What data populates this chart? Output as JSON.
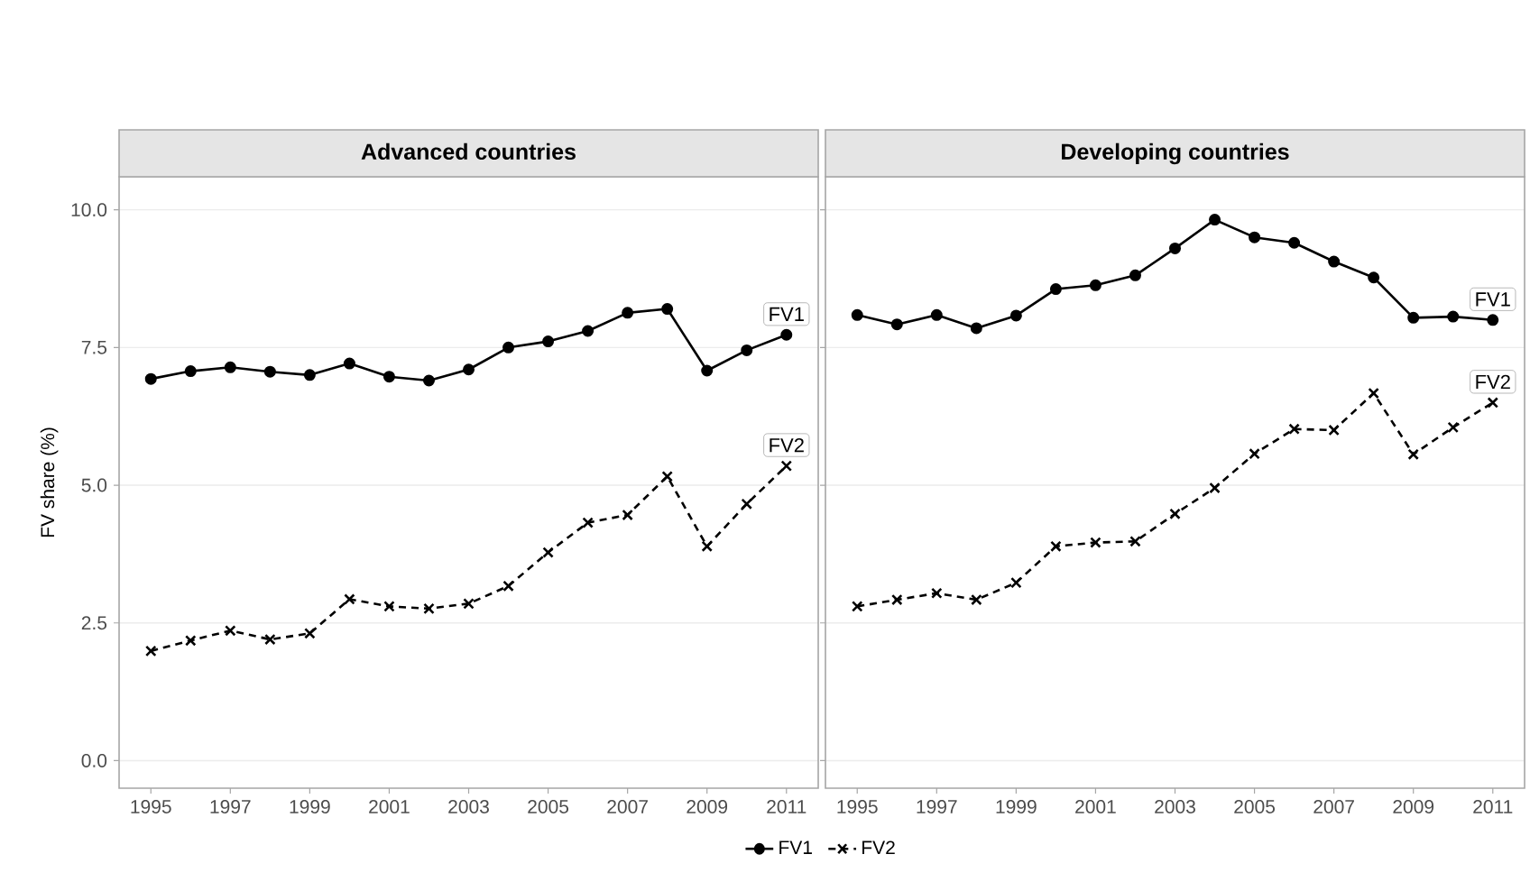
{
  "chart_data": [
    {
      "type": "line",
      "title": "Advanced countries",
      "ylabel": "FV share (%)",
      "grid": "y",
      "legend": "bottom",
      "x": [
        1995,
        1996,
        1997,
        1998,
        1999,
        2000,
        2001,
        2002,
        2003,
        2004,
        2005,
        2006,
        2007,
        2008,
        2009,
        2010,
        2011
      ],
      "xlim": [
        1994.2,
        2011.8
      ],
      "xticks": [
        1995,
        1997,
        1999,
        2001,
        2003,
        2005,
        2007,
        2009,
        2011
      ],
      "ylim": [
        -0.5,
        10.6
      ],
      "yticks": [
        {
          "value": 0,
          "label": "0.0"
        },
        {
          "value": 2.5,
          "label": "2.5"
        },
        {
          "value": 5,
          "label": "5.0"
        },
        {
          "value": 7.5,
          "label": "7.5"
        },
        {
          "value": 10,
          "label": "10.0"
        }
      ],
      "series": [
        {
          "name": "FV1",
          "color": "#000000",
          "marker": "circle",
          "line_style": "solid",
          "values": [
            6.93,
            7.07,
            7.14,
            7.06,
            7.0,
            7.21,
            6.97,
            6.9,
            7.1,
            7.5,
            7.61,
            7.8,
            8.13,
            8.2,
            7.08,
            7.45,
            7.73
          ]
        },
        {
          "name": "FV2",
          "color": "#000000",
          "marker": "cross",
          "line_style": "dashed",
          "values": [
            1.99,
            2.18,
            2.36,
            2.2,
            2.31,
            2.93,
            2.8,
            2.76,
            2.85,
            3.17,
            3.78,
            4.32,
            4.46,
            5.16,
            3.89,
            4.66,
            5.35
          ]
        }
      ]
    },
    {
      "type": "line",
      "title": "Developing countries",
      "grid": "y",
      "tick_labels": "x",
      "x": [
        1995,
        1996,
        1997,
        1998,
        1999,
        2000,
        2001,
        2002,
        2003,
        2004,
        2005,
        2006,
        2007,
        2008,
        2009,
        2010,
        2011
      ],
      "xlim": [
        1994.2,
        2011.8
      ],
      "xticks": [
        1995,
        1997,
        1999,
        2001,
        2003,
        2005,
        2007,
        2009,
        2011
      ],
      "ylim": [
        -0.5,
        10.6
      ],
      "yticks": [
        {
          "value": 0,
          "label": null
        },
        {
          "value": 2.5,
          "label": null
        },
        {
          "value": 5,
          "label": null
        },
        {
          "value": 7.5,
          "label": null
        },
        {
          "value": 10,
          "label": null
        }
      ],
      "series": [
        {
          "name": "FV1",
          "color": "#000000",
          "marker": "circle",
          "line_style": "solid",
          "values": [
            8.09,
            7.92,
            8.09,
            7.85,
            8.08,
            8.56,
            8.63,
            8.81,
            9.3,
            9.82,
            9.5,
            9.4,
            9.06,
            8.77,
            8.04,
            8.06,
            8.0
          ]
        },
        {
          "name": "FV2",
          "color": "#000000",
          "marker": "cross",
          "line_style": "dashed",
          "values": [
            2.8,
            2.92,
            3.04,
            2.92,
            3.23,
            3.89,
            3.96,
            3.98,
            4.48,
            4.95,
            5.57,
            6.02,
            6.0,
            6.67,
            5.56,
            6.05,
            6.5
          ]
        }
      ]
    }
  ]
}
